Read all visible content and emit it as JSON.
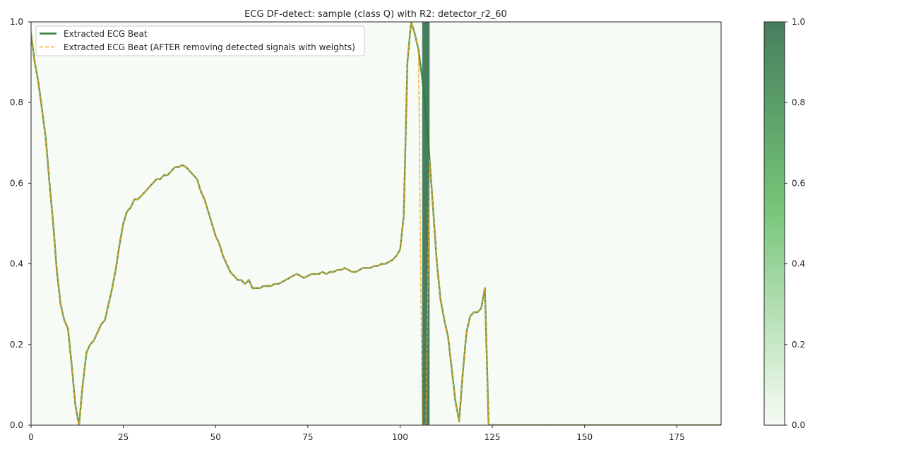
{
  "chart_data": {
    "type": "line",
    "title": "ECG DF-detect: sample (class Q) with R2: detector_r2_60",
    "xlabel": "",
    "ylabel": "",
    "xlim": [
      0,
      187
    ],
    "ylim": [
      0,
      1
    ],
    "grid": false,
    "legend_position": "top-left",
    "x_ticks": [
      "0",
      "25",
      "50",
      "75",
      "100",
      "125",
      "150",
      "175"
    ],
    "y_ticks": [
      "0.0",
      "0.2",
      "0.4",
      "0.6",
      "0.8",
      "1.0"
    ],
    "background_color": "#f7fbf5",
    "series": [
      {
        "name": "Extracted ECG Beat",
        "color": "#2e7d32",
        "style": "solid",
        "x": [
          0,
          1,
          2,
          3,
          4,
          5,
          6,
          7,
          8,
          9,
          10,
          11,
          12,
          13,
          14,
          15,
          16,
          17,
          18,
          19,
          20,
          21,
          22,
          23,
          24,
          25,
          26,
          27,
          28,
          29,
          30,
          31,
          32,
          33,
          34,
          35,
          36,
          37,
          38,
          39,
          40,
          41,
          42,
          43,
          44,
          45,
          46,
          47,
          48,
          49,
          50,
          51,
          52,
          53,
          54,
          55,
          56,
          57,
          58,
          59,
          60,
          61,
          62,
          63,
          64,
          65,
          66,
          67,
          68,
          69,
          70,
          71,
          72,
          73,
          74,
          75,
          76,
          77,
          78,
          79,
          80,
          81,
          82,
          83,
          84,
          85,
          86,
          87,
          88,
          89,
          90,
          91,
          92,
          93,
          94,
          95,
          96,
          97,
          98,
          99,
          100,
          101,
          102,
          103,
          104,
          105,
          106,
          107,
          108,
          109,
          110,
          111,
          112,
          113,
          114,
          115,
          116,
          117,
          118,
          119,
          120,
          121,
          122,
          123,
          124,
          125,
          187
        ],
        "y": [
          0.97,
          0.9,
          0.85,
          0.78,
          0.71,
          0.6,
          0.5,
          0.38,
          0.3,
          0.26,
          0.24,
          0.15,
          0.05,
          0.0,
          0.1,
          0.18,
          0.2,
          0.21,
          0.23,
          0.25,
          0.26,
          0.3,
          0.34,
          0.39,
          0.45,
          0.5,
          0.53,
          0.54,
          0.56,
          0.56,
          0.57,
          0.58,
          0.59,
          0.6,
          0.61,
          0.61,
          0.62,
          0.62,
          0.63,
          0.64,
          0.64,
          0.645,
          0.64,
          0.63,
          0.62,
          0.61,
          0.58,
          0.56,
          0.53,
          0.5,
          0.47,
          0.45,
          0.42,
          0.4,
          0.38,
          0.37,
          0.36,
          0.36,
          0.35,
          0.36,
          0.34,
          0.34,
          0.34,
          0.345,
          0.345,
          0.345,
          0.35,
          0.35,
          0.355,
          0.36,
          0.365,
          0.37,
          0.375,
          0.37,
          0.365,
          0.37,
          0.375,
          0.375,
          0.375,
          0.38,
          0.375,
          0.38,
          0.38,
          0.385,
          0.385,
          0.39,
          0.385,
          0.38,
          0.38,
          0.385,
          0.39,
          0.39,
          0.39,
          0.395,
          0.395,
          0.4,
          0.4,
          0.405,
          0.41,
          0.42,
          0.435,
          0.52,
          0.9,
          1.0,
          0.97,
          0.93,
          0.86,
          0.78,
          0.66,
          0.53,
          0.4,
          0.31,
          0.26,
          0.22,
          0.14,
          0.06,
          0.01,
          0.13,
          0.23,
          0.27,
          0.28,
          0.28,
          0.29,
          0.34,
          0.0,
          0.0,
          0.0
        ]
      },
      {
        "name": "Extracted ECG Beat (AFTER removing detected signals with weights)",
        "color": "#f5a623",
        "style": "dashed",
        "x": [
          0,
          1,
          2,
          3,
          4,
          5,
          6,
          7,
          8,
          9,
          10,
          11,
          12,
          13,
          14,
          15,
          16,
          17,
          18,
          19,
          20,
          21,
          22,
          23,
          24,
          25,
          26,
          27,
          28,
          29,
          30,
          31,
          32,
          33,
          34,
          35,
          36,
          37,
          38,
          39,
          40,
          41,
          42,
          43,
          44,
          45,
          46,
          47,
          48,
          49,
          50,
          51,
          52,
          53,
          54,
          55,
          56,
          57,
          58,
          59,
          60,
          61,
          62,
          63,
          64,
          65,
          66,
          67,
          68,
          69,
          70,
          71,
          72,
          73,
          74,
          75,
          76,
          77,
          78,
          79,
          80,
          81,
          82,
          83,
          84,
          85,
          86,
          87,
          88,
          89,
          90,
          91,
          92,
          93,
          94,
          95,
          96,
          97,
          98,
          99,
          100,
          101,
          102,
          103,
          104,
          105,
          106,
          107,
          108,
          109,
          110,
          111,
          112,
          113,
          114,
          115,
          116,
          117,
          118,
          119,
          120,
          121,
          122,
          123,
          124,
          125,
          187
        ],
        "y": [
          0.97,
          0.9,
          0.85,
          0.78,
          0.71,
          0.6,
          0.5,
          0.38,
          0.3,
          0.26,
          0.24,
          0.15,
          0.05,
          0.0,
          0.1,
          0.18,
          0.2,
          0.21,
          0.23,
          0.25,
          0.26,
          0.3,
          0.34,
          0.39,
          0.45,
          0.5,
          0.53,
          0.54,
          0.56,
          0.56,
          0.57,
          0.58,
          0.59,
          0.6,
          0.61,
          0.61,
          0.62,
          0.62,
          0.63,
          0.64,
          0.64,
          0.645,
          0.64,
          0.63,
          0.62,
          0.61,
          0.58,
          0.56,
          0.53,
          0.5,
          0.47,
          0.45,
          0.42,
          0.4,
          0.38,
          0.37,
          0.36,
          0.36,
          0.35,
          0.36,
          0.34,
          0.34,
          0.34,
          0.345,
          0.345,
          0.345,
          0.35,
          0.35,
          0.355,
          0.36,
          0.365,
          0.37,
          0.375,
          0.37,
          0.365,
          0.37,
          0.375,
          0.375,
          0.375,
          0.38,
          0.375,
          0.38,
          0.38,
          0.385,
          0.385,
          0.39,
          0.385,
          0.38,
          0.38,
          0.385,
          0.39,
          0.39,
          0.39,
          0.395,
          0.395,
          0.4,
          0.4,
          0.405,
          0.41,
          0.42,
          0.435,
          0.52,
          0.9,
          1.0,
          0.97,
          0.93,
          0.0,
          0.0,
          0.66,
          0.53,
          0.4,
          0.31,
          0.26,
          0.22,
          0.14,
          0.06,
          0.01,
          0.13,
          0.23,
          0.27,
          0.28,
          0.28,
          0.29,
          0.34,
          0.0,
          0.0,
          0.0
        ]
      }
    ],
    "highlight_bands": [
      {
        "x_start": 106,
        "x_end": 108,
        "weight": 1.0
      }
    ],
    "colorbar": {
      "ticks": [
        "0.0",
        "0.2",
        "0.4",
        "0.6",
        "0.8",
        "1.0"
      ],
      "range": [
        0,
        1
      ],
      "color_low": "#f7fcf5",
      "color_mid": "#74c476",
      "color_high": "#467e5e"
    }
  }
}
